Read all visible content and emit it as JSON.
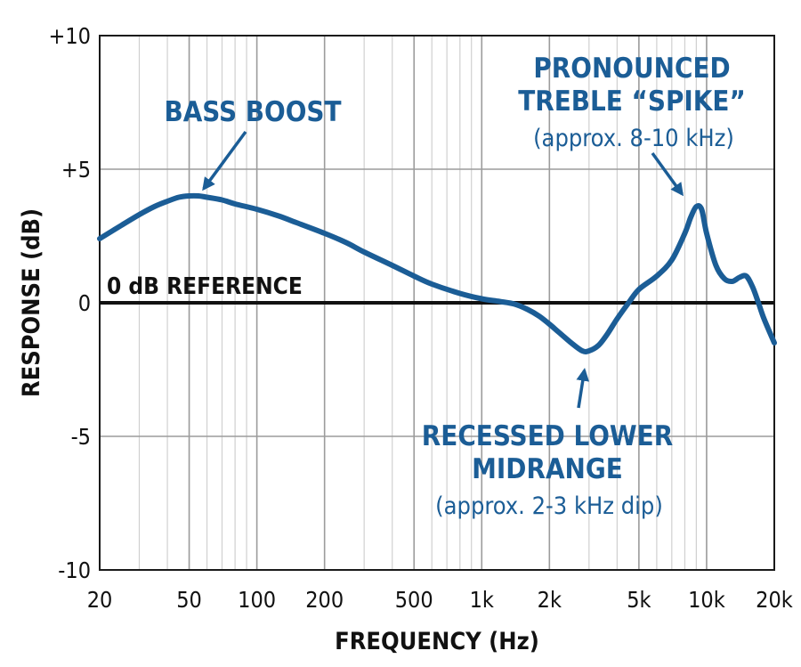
{
  "chart_data": {
    "type": "line",
    "xscale": "log",
    "xlim": [
      20,
      20000
    ],
    "ylim": [
      -10,
      10
    ],
    "grid": true,
    "xlabel": "FREQUENCY (Hz)",
    "ylabel": "RESPONSE (dB)",
    "x_ticks": [
      20,
      50,
      100,
      200,
      500,
      1000,
      2000,
      5000,
      10000,
      20000
    ],
    "x_tick_labels": [
      "20",
      "50",
      "100",
      "200",
      "500",
      "1k",
      "2k",
      "5k",
      "10k",
      "20k"
    ],
    "y_ticks": [
      10,
      5,
      0,
      -5,
      -10
    ],
    "y_tick_labels": [
      "+10",
      "+5",
      "0",
      "-5",
      "-10"
    ],
    "reference": {
      "y": 0,
      "label": "0 dB REFERENCE"
    },
    "series": [
      {
        "color": "#1b5d96",
        "x": [
          20,
          25,
          30,
          35,
          40,
          45,
          50,
          55,
          60,
          70,
          80,
          100,
          125,
          150,
          200,
          250,
          300,
          400,
          500,
          600,
          800,
          1000,
          1200,
          1400,
          1600,
          1800,
          2000,
          2200,
          2500,
          2800,
          3000,
          3300,
          3600,
          4000,
          4500,
          5000,
          6000,
          7000,
          8000,
          8500,
          9000,
          9500,
          10000,
          11000,
          12000,
          13000,
          14000,
          15000,
          16000,
          17000,
          18000,
          20000
        ],
        "y": [
          2.4,
          2.9,
          3.3,
          3.6,
          3.8,
          3.95,
          4.0,
          4.0,
          3.95,
          3.85,
          3.7,
          3.5,
          3.25,
          3.0,
          2.6,
          2.25,
          1.9,
          1.4,
          1.0,
          0.7,
          0.35,
          0.15,
          0.05,
          -0.05,
          -0.25,
          -0.5,
          -0.8,
          -1.1,
          -1.5,
          -1.8,
          -1.8,
          -1.6,
          -1.2,
          -0.6,
          0.0,
          0.5,
          1.0,
          1.6,
          2.6,
          3.2,
          3.6,
          3.5,
          2.6,
          1.4,
          0.9,
          0.8,
          0.95,
          1.0,
          0.6,
          0.0,
          -0.6,
          -1.5
        ]
      }
    ],
    "annotations": [
      {
        "lines": [
          "BASS BOOST"
        ],
        "sub": "",
        "color": "#1b5d96",
        "target_x": 55,
        "target_y": 4.0
      },
      {
        "lines": [
          "PRONOUNCED",
          "TREBLE “SPIKE”"
        ],
        "sub": "(approx. 8-10 kHz)",
        "color": "#1b5d96",
        "target_x": 8200,
        "target_y": 3.8
      },
      {
        "lines": [
          "RECESSED LOWER",
          "MIDRANGE"
        ],
        "sub": "(approx. 2-3 kHz dip)",
        "color": "#1b5d96",
        "target_x": 2900,
        "target_y": -2.2
      }
    ]
  }
}
